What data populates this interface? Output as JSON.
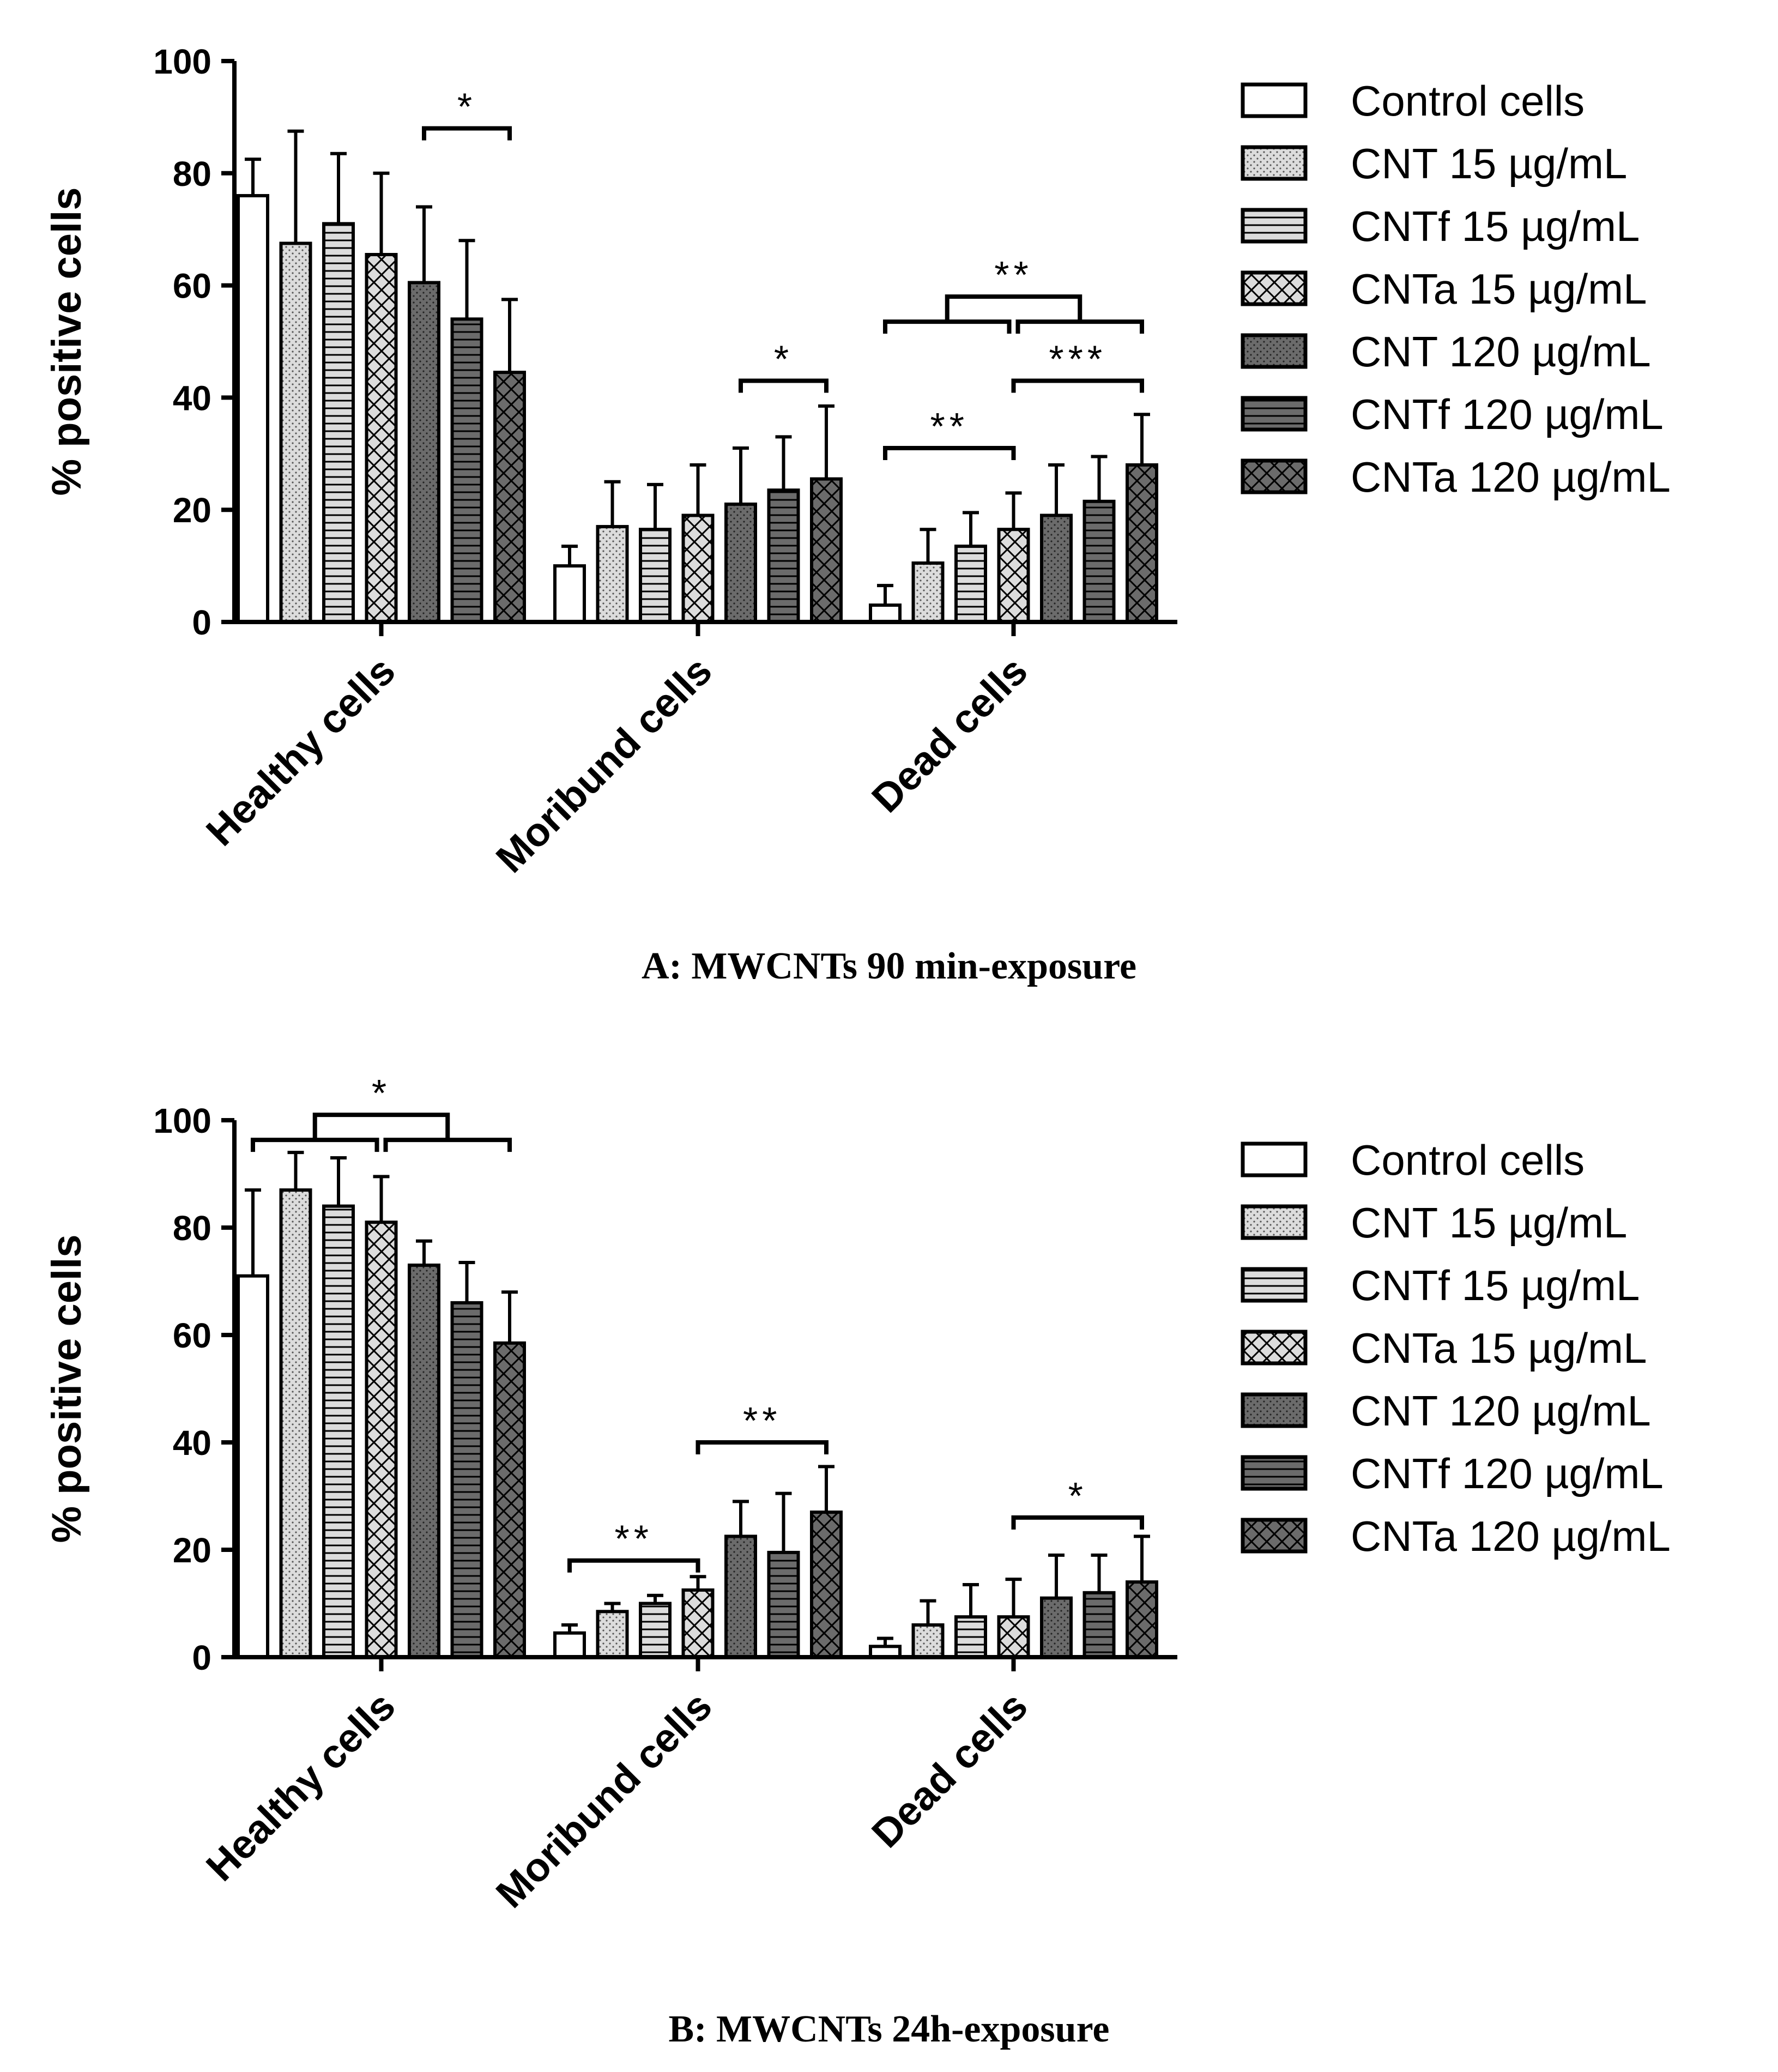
{
  "chart_data": [
    {
      "type": "bar",
      "caption": "A: MWCNTs 90 min-exposure",
      "ylabel": "% positive cells",
      "ylim": [
        0,
        100
      ],
      "yticks": [
        0,
        20,
        40,
        60,
        80,
        100
      ],
      "categories": [
        "Healthy cells",
        "Moribund cells",
        "Dead cells"
      ],
      "series": [
        {
          "name": "Control cells",
          "pattern": "plain",
          "values": [
            76,
            10,
            3
          ],
          "errors": [
            6.5,
            3.5,
            3.5
          ]
        },
        {
          "name": "CNT 15 µg/mL",
          "pattern": "dots-light",
          "values": [
            67.5,
            17,
            10.5
          ],
          "errors": [
            20,
            8,
            6
          ]
        },
        {
          "name": "CNTf 15 µg/mL",
          "pattern": "hlines-light",
          "values": [
            71,
            16.5,
            13.5
          ],
          "errors": [
            12.5,
            8,
            6
          ]
        },
        {
          "name": "CNTa 15 µg/mL",
          "pattern": "cross-light",
          "values": [
            65.5,
            19,
            16.5
          ],
          "errors": [
            14.5,
            9,
            6.5
          ]
        },
        {
          "name": "CNT 120 µg/mL",
          "pattern": "dots-dark",
          "values": [
            60.5,
            21,
            19
          ],
          "errors": [
            13.5,
            10,
            9
          ]
        },
        {
          "name": "CNTf 120 µg/mL",
          "pattern": "hlines-dark",
          "values": [
            54,
            23.5,
            21.5
          ],
          "errors": [
            14,
            9.5,
            8
          ]
        },
        {
          "name": "CNTa 120 µg/mL",
          "pattern": "cross-dark",
          "values": [
            44.5,
            25.5,
            28
          ],
          "errors": [
            13,
            13,
            9
          ]
        }
      ],
      "significance": [
        {
          "stars": "*",
          "ref": "one",
          "group": 0,
          "from": 4,
          "to": 6,
          "level": 88
        },
        {
          "stars": "*",
          "ref": "one",
          "group": 1,
          "from": 4,
          "to": 6,
          "level": 43
        },
        {
          "stars": "**",
          "ref": "one",
          "group": 2,
          "from": 0,
          "to": 3,
          "level": 31
        },
        {
          "stars": "***",
          "ref": "one",
          "group": 2,
          "from": 3,
          "to": 6,
          "level": 43
        },
        {
          "stars": "**",
          "ref": "two",
          "group": 2,
          "a_from": 0,
          "a_to": 3,
          "b_from": 3,
          "b_to": 6,
          "level": 58
        }
      ],
      "legend": "right"
    },
    {
      "type": "bar",
      "caption": "B: MWCNTs 24h-exposure",
      "ylabel": "% positive cells",
      "ylim": [
        0,
        100
      ],
      "yticks": [
        0,
        20,
        40,
        60,
        80,
        100
      ],
      "categories": [
        "Healthy cells",
        "Moribund cells",
        "Dead cells"
      ],
      "series": [
        {
          "name": "Control cells",
          "pattern": "plain",
          "values": [
            71,
            4.5,
            2
          ],
          "errors": [
            16,
            1.5,
            1.5
          ]
        },
        {
          "name": "CNT 15 µg/mL",
          "pattern": "dots-light",
          "values": [
            87,
            8.5,
            6
          ],
          "errors": [
            7,
            1.5,
            4.5
          ]
        },
        {
          "name": "CNTf 15 µg/mL",
          "pattern": "hlines-light",
          "values": [
            84,
            10,
            7.5
          ],
          "errors": [
            9,
            1.5,
            6
          ]
        },
        {
          "name": "CNTa 15 µg/mL",
          "pattern": "cross-light",
          "values": [
            81,
            12.5,
            7.5
          ],
          "errors": [
            8.5,
            2.5,
            7
          ]
        },
        {
          "name": "CNT 120 µg/mL",
          "pattern": "dots-dark",
          "values": [
            73,
            22.5,
            11
          ],
          "errors": [
            4.5,
            6.5,
            8
          ]
        },
        {
          "name": "CNTf 120 µg/mL",
          "pattern": "hlines-dark",
          "values": [
            66,
            19.5,
            12
          ],
          "errors": [
            7.5,
            11,
            7
          ]
        },
        {
          "name": "CNTa 120 µg/mL",
          "pattern": "cross-dark",
          "values": [
            58.5,
            27,
            14
          ],
          "errors": [
            9.5,
            8.5,
            8.5
          ]
        }
      ],
      "significance": [
        {
          "stars": "**",
          "ref": "one",
          "group": 1,
          "from": 0,
          "to": 3,
          "level": 18
        },
        {
          "stars": "**",
          "ref": "one",
          "group": 1,
          "from": 3,
          "to": 6,
          "level": 40
        },
        {
          "stars": "*",
          "ref": "one",
          "group": 2,
          "from": 3,
          "to": 6,
          "level": 26
        },
        {
          "stars": "*",
          "ref": "two",
          "group": 0,
          "a_from": 0,
          "a_to": 3,
          "b_from": 3,
          "b_to": 6,
          "level": 101
        }
      ],
      "legend": "right"
    }
  ],
  "colors": {
    "control": "#ffffff",
    "light_fill": "#dcdcdc",
    "dark_fill": "#6b6b6b",
    "stroke": "#000000"
  }
}
